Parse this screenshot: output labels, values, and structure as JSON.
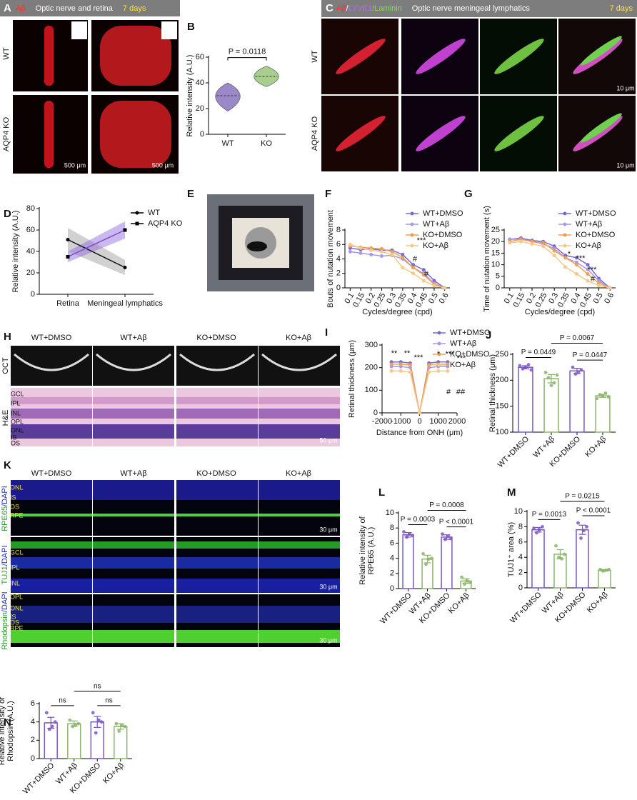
{
  "panel_letters": [
    "A",
    "B",
    "C",
    "D",
    "E",
    "F",
    "G",
    "H",
    "I",
    "J",
    "K",
    "L",
    "M",
    "N"
  ],
  "figures": {
    "A": {
      "header": [
        "Aβ",
        "Optic nerve and retina",
        "7 days"
      ],
      "rows": [
        "WT",
        "AQP4 KO"
      ],
      "scale_bars": [
        "500 μm",
        "500 μm"
      ]
    },
    "C": {
      "header": [
        "Aβ",
        "/",
        "LYVE1",
        "/Laminin",
        "Optic nerve meningeal lymphatics",
        "7 days"
      ],
      "rows": [
        "WT",
        "AQP4 KO"
      ],
      "scale_bars": [
        "10 μm",
        "10 μm"
      ]
    },
    "H": {
      "columns": [
        "WT+DMSO",
        "WT+Aβ",
        "KO+DMSO",
        "KO+Aβ"
      ],
      "rows": [
        "OCT",
        "H&E"
      ],
      "layers": [
        "GCL",
        "IPL",
        "INL",
        "OPL",
        "ONL",
        "IS",
        "OS"
      ],
      "scale_bar": "50 μm"
    },
    "K": {
      "columns": [
        "WT+DMSO",
        "WT+Aβ",
        "KO+DMSO",
        "KO+Aβ"
      ],
      "rows": [
        {
          "stain": "RPE65",
          "counterstain": "/DAPI",
          "layers": [
            "ONL",
            "IS",
            "OS",
            "RPE"
          ],
          "scale_bar": "30 μm"
        },
        {
          "stain": "TUJ1",
          "counterstain": "/DAPI",
          "layers": [
            "GCL",
            "IPL",
            "INL"
          ],
          "scale_bar": "30 μm"
        },
        {
          "stain": "Rhodopsin",
          "counterstain": "/DAPI",
          "layers": [
            "OPL",
            "ONL",
            "IS",
            "OS",
            "RPE"
          ],
          "scale_bar": "30 μm"
        }
      ]
    }
  },
  "chart_data": [
    {
      "type": "violin",
      "ylabel": "Relative intensity (A.U.)",
      "categories": [
        "WT",
        "KO"
      ],
      "values": [
        30,
        45
      ],
      "mins": [
        18,
        37
      ],
      "maxs": [
        40,
        53
      ],
      "colors": [
        "#9b88c9",
        "#a8cf8e"
      ],
      "ylim": [
        0,
        60
      ],
      "yticks": [
        0,
        20,
        40,
        60
      ],
      "annotations": [
        "P = 0.0118"
      ]
    },
    {
      "type": "line",
      "ylabel": "Relative intensity (A.U.)",
      "categories": [
        "Retina",
        "Meningeal lymphatics"
      ],
      "series": [
        {
          "name": "WT",
          "color": "#111111",
          "band_color": "#9a9a9a",
          "marker": "circle",
          "values": [
            51,
            25
          ],
          "lower": [
            40,
            18
          ],
          "upper": [
            62,
            32
          ]
        },
        {
          "name": "AQP4 KO",
          "color": "#7a4fc9",
          "band_color": "#8e62e0",
          "marker": "square",
          "values": [
            35,
            60
          ],
          "lower": [
            30,
            52
          ],
          "upper": [
            40,
            68
          ]
        }
      ],
      "ylim": [
        0,
        80
      ],
      "yticks": [
        0,
        20,
        40,
        60,
        80
      ]
    },
    {
      "type": "line",
      "ylabel": "Bouts of nutation movement",
      "xlabel": "Cycles/degree (cpd)",
      "categories": [
        "0.1",
        "0.15",
        "0.2",
        "0.25",
        "0.3",
        "0.35",
        "0.4",
        "0.45",
        "0.5",
        "0.6"
      ],
      "series": [
        {
          "name": "WT+DMSO",
          "color": "#7b6ad0",
          "marker": "circle",
          "values": [
            5.5,
            5.3,
            5.4,
            5.2,
            5.2,
            4.6,
            3.2,
            2.5,
            1.0,
            0
          ]
        },
        {
          "name": "WT+Aβ",
          "color": "#a79ae6",
          "marker": "circle",
          "values": [
            5.0,
            4.8,
            4.6,
            4.4,
            4.5,
            4.0,
            2.8,
            2.0,
            0.6,
            0
          ]
        },
        {
          "name": "KO+DMSO",
          "color": "#ee9f55",
          "marker": "circle",
          "values": [
            5.8,
            5.6,
            5.5,
            5.4,
            5.0,
            4.2,
            2.8,
            1.8,
            0.5,
            0
          ]
        },
        {
          "name": "KO+Aβ",
          "color": "#f5c987",
          "marker": "circle",
          "values": [
            6.0,
            5.5,
            5.2,
            5.0,
            4.6,
            2.8,
            2.0,
            1.0,
            0.3,
            0
          ]
        }
      ],
      "ylim": [
        0,
        8
      ],
      "yticks": [
        0,
        2,
        4,
        6,
        8
      ],
      "annotations": [
        "***",
        "#",
        "#"
      ]
    },
    {
      "type": "line",
      "ylabel": "Time of nutation movement (s)",
      "xlabel": "Cycles/degree (cpd)",
      "categories": [
        "0.1",
        "0.15",
        "0.2",
        "0.25",
        "0.3",
        "0.35",
        "0.4",
        "0.45",
        "0.5",
        "0.6"
      ],
      "series": [
        {
          "name": "WT+DMSO",
          "color": "#7b6ad0",
          "marker": "circle",
          "values": [
            21,
            21.5,
            20.5,
            20,
            18,
            14,
            13,
            10,
            4,
            0
          ]
        },
        {
          "name": "WT+Aβ",
          "color": "#a79ae6",
          "marker": "circle",
          "values": [
            21,
            21,
            20,
            19,
            17,
            13,
            11,
            8,
            3,
            0
          ]
        },
        {
          "name": "KO+DMSO",
          "color": "#ee9f55",
          "marker": "circle",
          "values": [
            20,
            21,
            20,
            19.5,
            16,
            13,
            10,
            6,
            2,
            0
          ]
        },
        {
          "name": "KO+Aβ",
          "color": "#f5c987",
          "marker": "circle",
          "values": [
            19.5,
            20,
            19,
            18,
            14,
            9,
            6,
            3,
            1,
            0
          ]
        }
      ],
      "ylim": [
        0,
        25
      ],
      "yticks": [
        0,
        5,
        10,
        15,
        20,
        25
      ],
      "annotations": [
        "*",
        "***",
        "***",
        "#"
      ]
    },
    {
      "type": "line",
      "ylabel": "Retinal thickness (μm)",
      "xlabel": "Distance from ONH (μm)",
      "x": [
        -1500,
        -1000,
        -500,
        0,
        500,
        1000,
        1500
      ],
      "series": [
        {
          "name": "WT+DMSO",
          "color": "#7b6ad0",
          "marker": "circle",
          "values": [
            225,
            225,
            220,
            0,
            220,
            225,
            225
          ]
        },
        {
          "name": "WT+Aβ",
          "color": "#a79ae6",
          "marker": "circle",
          "values": [
            205,
            205,
            200,
            0,
            200,
            205,
            205
          ]
        },
        {
          "name": "KO+DMSO",
          "color": "#ee9f55",
          "marker": "circle",
          "values": [
            215,
            215,
            212,
            0,
            212,
            215,
            215
          ]
        },
        {
          "name": "KO+Aβ",
          "color": "#f5c987",
          "marker": "circle",
          "values": [
            185,
            185,
            180,
            0,
            180,
            185,
            185
          ]
        }
      ],
      "xlim": [
        -2000,
        2000
      ],
      "xticks": [
        -2000,
        -1000,
        0,
        1000,
        2000
      ],
      "ylim": [
        0,
        300
      ],
      "yticks": [
        0,
        100,
        200,
        300
      ],
      "annotations": [
        "**",
        "**",
        "***",
        "*",
        "***",
        "***",
        "#",
        "##"
      ]
    },
    {
      "type": "bar",
      "ylabel": "Retinal thickness (μm)",
      "categories": [
        "WT+DMSO",
        "WT+Aβ",
        "KO+DMSO",
        "KO+Aβ"
      ],
      "values": [
        225,
        203,
        218,
        170
      ],
      "errors": [
        3,
        8,
        5,
        3
      ],
      "colors": [
        "#7b57c6",
        "#8bb56a",
        "#7b57c6",
        "#8bb56a"
      ],
      "points": [
        [
          228,
          222,
          225,
          230,
          220
        ],
        [
          215,
          205,
          190,
          195,
          210
        ],
        [
          225,
          212,
          215,
          220
        ],
        [
          165,
          172,
          170,
          175,
          168
        ]
      ],
      "ylim": [
        100,
        250
      ],
      "yticks": [
        100,
        150,
        200,
        250
      ],
      "annotations": [
        "P = 0.0449",
        "P = 0.0447",
        "P = 0.0067"
      ]
    },
    {
      "type": "bar",
      "ylabel": [
        "Relative intensity of",
        "RPE65 (A.U.)"
      ],
      "categories": [
        "WT+DMSO",
        "WT+Aβ",
        "KO+DMSO",
        "KO+Aβ"
      ],
      "values": [
        7.1,
        3.9,
        6.8,
        1.0
      ],
      "errors": [
        0.3,
        0.5,
        0.3,
        0.3
      ],
      "colors": [
        "#7b57c6",
        "#8bb56a",
        "#7b57c6",
        "#8bb56a"
      ],
      "points": [
        [
          7.5,
          6.8,
          7.2,
          7.0
        ],
        [
          4.6,
          3.2,
          3.9,
          4.0
        ],
        [
          7.2,
          6.5,
          6.9,
          6.6
        ],
        [
          1.5,
          0.6,
          1.0,
          0.8
        ]
      ],
      "ylim": [
        0,
        10
      ],
      "yticks": [
        0,
        2,
        4,
        6,
        8,
        10
      ],
      "annotations": [
        "P = 0.0003",
        "P < 0.0001",
        "P = 0.0008"
      ]
    },
    {
      "type": "bar",
      "ylabel": "TUJ1⁺ area (%)",
      "categories": [
        "WT+DMSO",
        "WT+Aβ",
        "KO+DMSO",
        "KO+Aβ"
      ],
      "values": [
        7.6,
        4.4,
        7.6,
        2.3
      ],
      "errors": [
        0.3,
        0.6,
        0.6,
        0.1
      ],
      "colors": [
        "#7b57c6",
        "#8bb56a",
        "#7b57c6",
        "#8bb56a"
      ],
      "points": [
        [
          7.8,
          7.2,
          7.6,
          8.0
        ],
        [
          5.5,
          4.0,
          3.8,
          4.4
        ],
        [
          8.5,
          6.5,
          7.5,
          8.0
        ],
        [
          2.4,
          2.2,
          2.3,
          2.4
        ]
      ],
      "ylim": [
        0,
        10
      ],
      "yticks": [
        0,
        2,
        4,
        6,
        8,
        10
      ],
      "annotations": [
        "P = 0.0013",
        "P < 0.0001",
        "P = 0.0215"
      ]
    },
    {
      "type": "bar",
      "ylabel": [
        "Relative intensity of",
        "Rhodopsin (A.U.)"
      ],
      "categories": [
        "WT+DMSO",
        "WT+Aβ",
        "KO+DMSO",
        "KO+Aβ"
      ],
      "values": [
        3.9,
        3.8,
        4.0,
        3.5
      ],
      "errors": [
        0.6,
        0.3,
        0.6,
        0.3
      ],
      "colors": [
        "#7b57c6",
        "#8bb56a",
        "#7b57c6",
        "#8bb56a"
      ],
      "points": [
        [
          5.0,
          3.2,
          3.5,
          4.0
        ],
        [
          4.2,
          3.5,
          3.7,
          3.8
        ],
        [
          5.0,
          2.8,
          4.2,
          4.0
        ],
        [
          3.8,
          3.0,
          3.6,
          3.5
        ]
      ],
      "ylim": [
        0,
        6
      ],
      "yticks": [
        0,
        2,
        4,
        6
      ],
      "annotations": [
        "ns",
        "ns",
        "ns"
      ]
    }
  ]
}
